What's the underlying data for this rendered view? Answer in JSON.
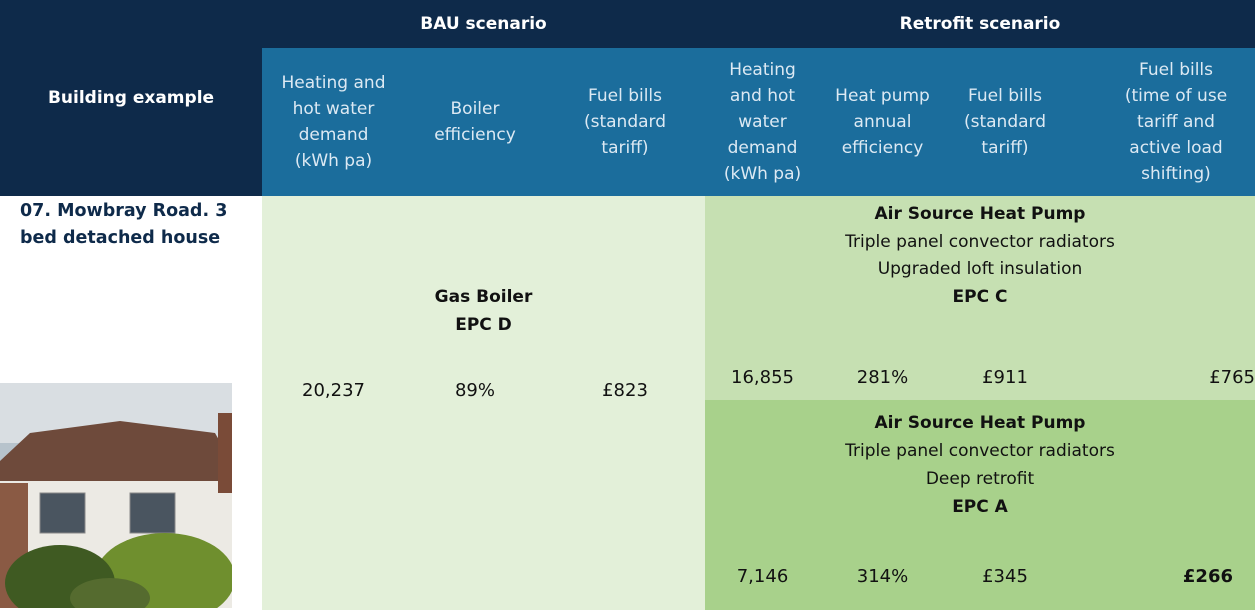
{
  "header": {
    "building_example": "Building example",
    "bau": {
      "title": "BAU scenario",
      "columns": [
        "Heating and hot water demand (kWh pa)",
        "Boiler efficiency",
        "Fuel bills (standard tariff)"
      ]
    },
    "retrofit": {
      "title": "Retrofit scenario",
      "columns": [
        "Heating and hot water demand (kWh pa)",
        "Heat pump annual efficiency",
        "Fuel bills (standard tariff)",
        "Fuel bills (time of use tariff and active load shifting)"
      ]
    }
  },
  "building": {
    "name": "07. Mowbray Road. 3 bed detached house"
  },
  "bau": {
    "description": [
      "Gas Boiler",
      "EPC D"
    ],
    "values": [
      "20,237",
      "89%",
      "£823"
    ]
  },
  "retrofit_options": [
    {
      "description": [
        "Air Source Heat Pump",
        "Triple panel convector radiators",
        "Upgraded loft insulation",
        "EPC C"
      ],
      "values": [
        "16,855",
        "281%",
        "£911",
        "£765"
      ]
    },
    {
      "description": [
        "Air Source Heat Pump",
        "Triple panel convector radiators",
        "Deep retrofit",
        "EPC A"
      ],
      "values": [
        "7,146",
        "314%",
        "£345",
        "£266"
      ]
    }
  ]
}
